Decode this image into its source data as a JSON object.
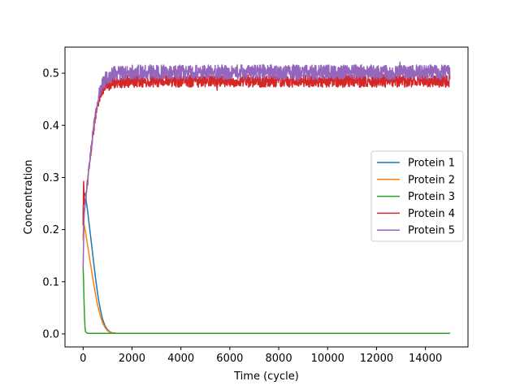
{
  "chart_data": {
    "type": "line",
    "title": "",
    "xlabel": "Time (cycle)",
    "ylabel": "Concentration",
    "xlim": [
      -740,
      15740
    ],
    "ylim": [
      -0.025,
      0.55
    ],
    "x_ticks": [
      0,
      2000,
      4000,
      6000,
      8000,
      10000,
      12000,
      14000
    ],
    "x_tick_labels": [
      "0",
      "2000",
      "4000",
      "6000",
      "8000",
      "10000",
      "12000",
      "14000"
    ],
    "y_ticks": [
      0.0,
      0.1,
      0.2,
      0.3,
      0.4,
      0.5
    ],
    "y_tick_labels": [
      "0.0",
      "0.1",
      "0.2",
      "0.3",
      "0.4",
      "0.5"
    ],
    "grid": false,
    "legend_position": "center-right",
    "series": [
      {
        "name": "Protein 1",
        "color": "#1f77b4",
        "x": [
          0,
          20,
          60,
          100,
          200,
          300,
          400,
          500,
          600,
          700,
          800,
          900,
          1000,
          1100,
          1200,
          1400,
          2000,
          15000
        ],
        "y": [
          0.22,
          0.26,
          0.27,
          0.265,
          0.23,
          0.19,
          0.15,
          0.11,
          0.075,
          0.048,
          0.028,
          0.015,
          0.008,
          0.004,
          0.002,
          0.001,
          0.001,
          0.001
        ]
      },
      {
        "name": "Protein 2",
        "color": "#ff7f0e",
        "x": [
          0,
          20,
          60,
          100,
          200,
          300,
          400,
          500,
          600,
          700,
          800,
          900,
          1000,
          1100,
          1200,
          1400,
          2000,
          15000
        ],
        "y": [
          0.18,
          0.215,
          0.205,
          0.195,
          0.165,
          0.135,
          0.105,
          0.078,
          0.054,
          0.035,
          0.021,
          0.012,
          0.006,
          0.003,
          0.002,
          0.001,
          0.001,
          0.001
        ]
      },
      {
        "name": "Protein 3",
        "color": "#2ca02c",
        "x": [
          0,
          20,
          40,
          60,
          80,
          100,
          150,
          200,
          15000
        ],
        "y": [
          0.13,
          0.1,
          0.06,
          0.03,
          0.012,
          0.004,
          0.002,
          0.001,
          0.001
        ]
      },
      {
        "name": "Protein 4",
        "color": "#d62728",
        "mean_x": [
          0,
          20,
          40,
          60,
          100,
          200,
          300,
          400,
          500,
          600,
          700,
          800,
          900,
          1000,
          1100,
          1200,
          1400,
          1600,
          2000,
          15000
        ],
        "mean_y": [
          0.205,
          0.29,
          0.265,
          0.25,
          0.255,
          0.3,
          0.34,
          0.38,
          0.415,
          0.44,
          0.46,
          0.47,
          0.475,
          0.478,
          0.48,
          0.482,
          0.483,
          0.484,
          0.485,
          0.485
        ],
        "noise_amplitude": 0.012
      },
      {
        "name": "Protein 5",
        "color": "#9467bd",
        "mean_x": [
          0,
          20,
          40,
          60,
          100,
          200,
          300,
          400,
          500,
          600,
          700,
          800,
          900,
          1000,
          1100,
          1200,
          1400,
          1600,
          2000,
          15000
        ],
        "mean_y": [
          0.12,
          0.18,
          0.22,
          0.24,
          0.255,
          0.3,
          0.345,
          0.385,
          0.42,
          0.448,
          0.468,
          0.48,
          0.488,
          0.493,
          0.496,
          0.498,
          0.5,
          0.501,
          0.502,
          0.502
        ],
        "noise_amplitude": 0.014
      }
    ]
  }
}
